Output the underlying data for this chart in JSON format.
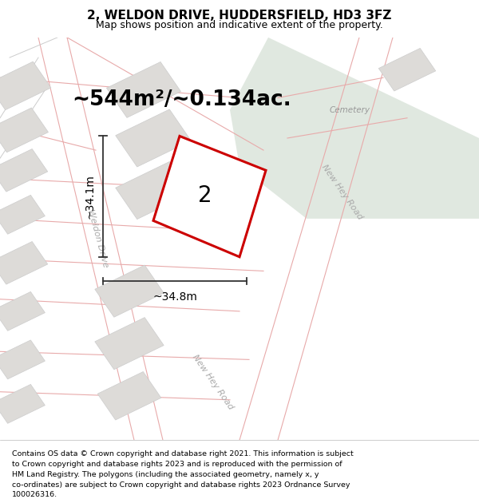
{
  "title": "2, WELDON DRIVE, HUDDERSFIELD, HD3 3FZ",
  "subtitle": "Map shows position and indicative extent of the property.",
  "area_label": "~544m²/~0.134ac.",
  "number_label": "2",
  "width_label": "~34.8m",
  "height_label": "~34.1m",
  "road_label_newhey1": "New Hey Road",
  "road_label_newhey2": "New Hey Road",
  "road_label_weldon": "Weldon Drive",
  "cemetery_label": "Cemetery",
  "footer_lines": [
    "Contains OS data © Crown copyright and database right 2021. This information is subject",
    "to Crown copyright and database rights 2023 and is reproduced with the permission of",
    "HM Land Registry. The polygons (including the associated geometry, namely x, y",
    "co-ordinates) are subject to Crown copyright and database rights 2023 Ordnance Survey",
    "100026316."
  ],
  "map_bg": "#f2f0ed",
  "cemetery_color": "#e0e8e0",
  "road_fill": "#f8f6f3",
  "building_fill": "#dddbd8",
  "building_edge": "#cccccc",
  "pink_line": "#e8aaaa",
  "plot_edge": "#cc0000",
  "plot_fill": "#ffffff",
  "dim_color": "#333333",
  "road_text_color": "#aaaaaa",
  "cemetery_text_color": "#999999",
  "title_fontsize": 11,
  "subtitle_fontsize": 9,
  "area_fontsize": 19,
  "number_fontsize": 20,
  "dim_fontsize": 10,
  "road_fontsize": 8,
  "footer_fontsize": 6.8
}
